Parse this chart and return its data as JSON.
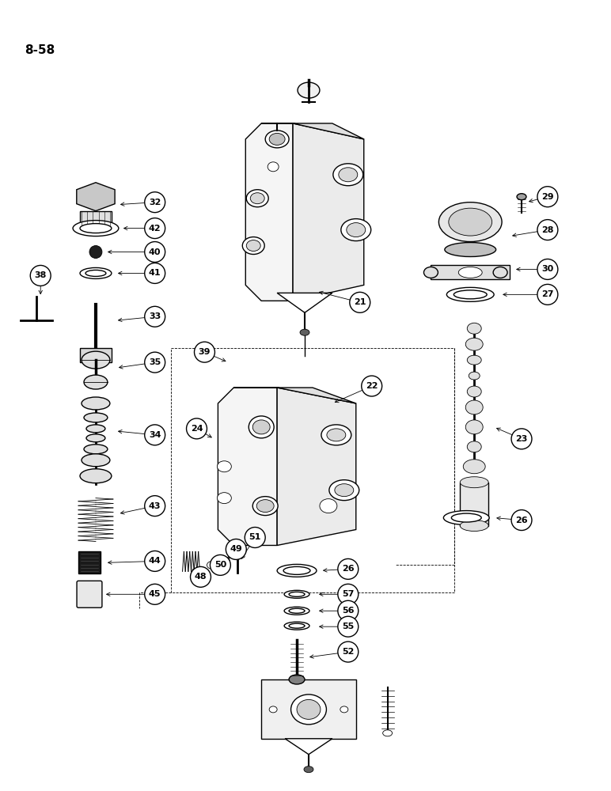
{
  "page_label": "8-58",
  "background_color": "#ffffff",
  "line_color": "#000000",
  "fig_width": 7.72,
  "fig_height": 10.0,
  "dpi": 100
}
